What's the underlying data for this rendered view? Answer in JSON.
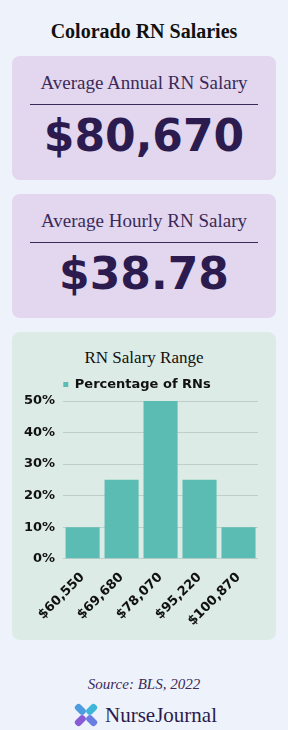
{
  "header": {
    "title": "Colorado RN Salaries"
  },
  "cards": [
    {
      "label": "Average Annual RN Salary",
      "value": "$80,670"
    },
    {
      "label": "Average Hourly RN Salary",
      "value": "$38.78"
    }
  ],
  "chart_data": {
    "type": "bar",
    "title": "RN Salary Range",
    "categories": [
      "$60,550",
      "$69,680",
      "$78,070",
      "$95,220",
      "$100,870"
    ],
    "series": [
      {
        "name": "Percentage of RNs",
        "color": "#5bbcb4",
        "values": [
          10,
          25,
          50,
          25,
          10
        ]
      }
    ],
    "ylim": [
      0,
      50
    ],
    "yticks": [
      {
        "value": 0,
        "label": "0%"
      },
      {
        "value": 10,
        "label": "10%"
      },
      {
        "value": 20,
        "label": "20%"
      },
      {
        "value": 30,
        "label": "30%"
      },
      {
        "value": 40,
        "label": "40%"
      },
      {
        "value": 50,
        "label": "50%"
      }
    ],
    "grid": true,
    "legend": "top"
  },
  "footer": {
    "source": "Source: BLS, 2022",
    "brand": "NurseJournal"
  }
}
